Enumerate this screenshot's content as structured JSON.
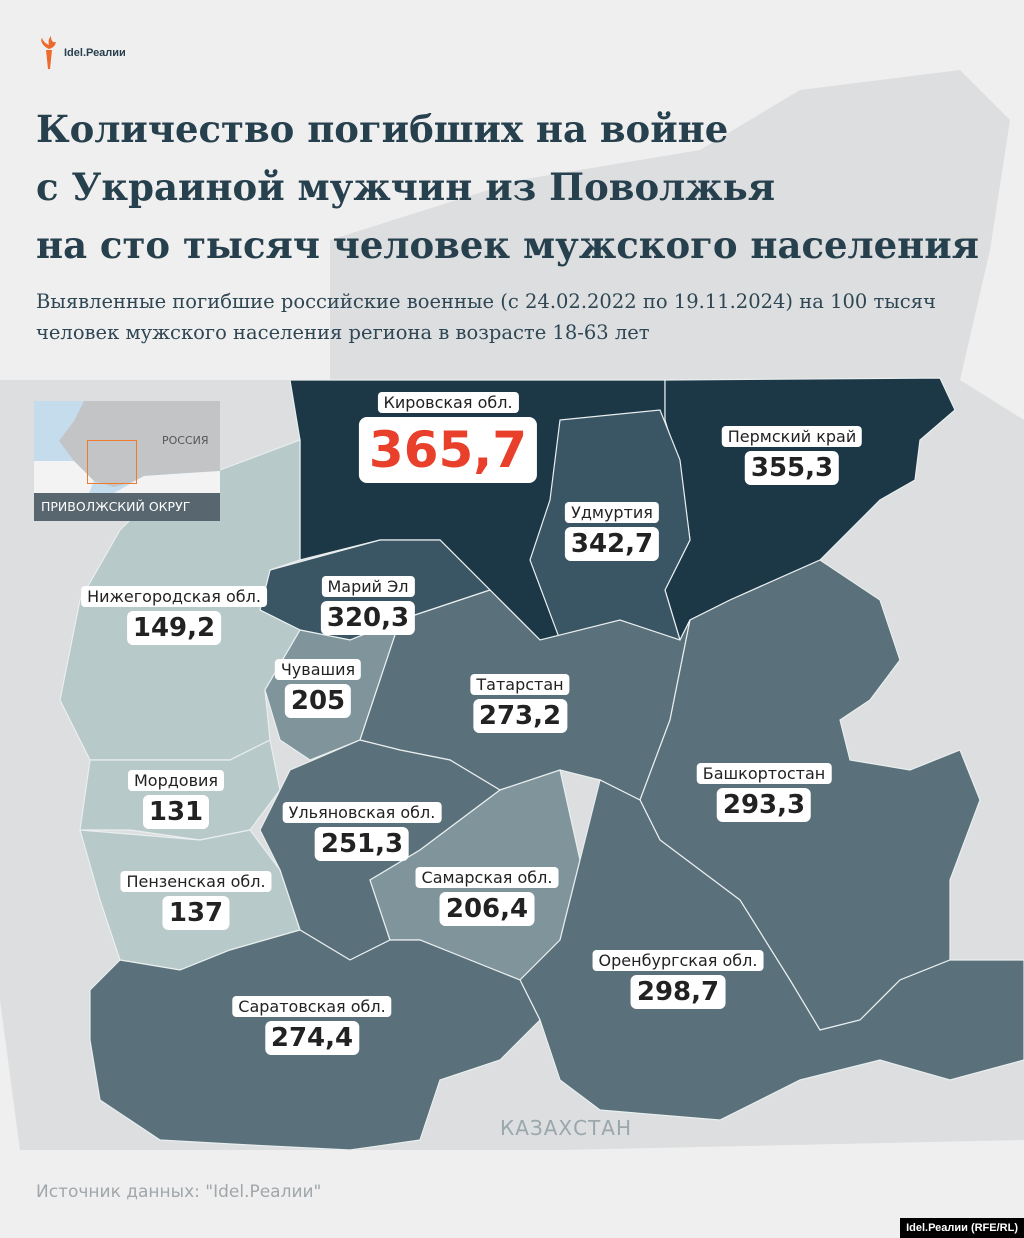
{
  "logo": {
    "text": "Idel.Реалии",
    "accent": "#ee6a2b"
  },
  "title_lines": [
    "Количество погибших на войне",
    "с Украиной мужчин из Поволжья",
    "на сто тысяч человек мужского населения"
  ],
  "subtitle": "Выявленные погибшие российские военные (с 24.02.2022 по 19.11.2024) на 100 тысяч человек мужского населения региона в возрасте 18-63 лет",
  "inset": {
    "country": "РОССИЯ",
    "caption": "ПРИВОЛЖСКИЙ ОКРУГ"
  },
  "neighbor_label": "КАЗАХСТАН",
  "colors": {
    "highest": "#1c3746",
    "high": "#3a5563",
    "mid": "#5a707a",
    "low": "#7f959b",
    "lowest": "#b8c9c9",
    "max_value": "#e8402a"
  },
  "regions": [
    {
      "name": "Кировская обл.",
      "value": "365,7"
    },
    {
      "name": "Пермский край",
      "value": "355,3"
    },
    {
      "name": "Удмуртия",
      "value": "342,7"
    },
    {
      "name": "Марий Эл",
      "value": "320,3"
    },
    {
      "name": "Нижегородская обл.",
      "value": "149,2"
    },
    {
      "name": "Чувашия",
      "value": "205"
    },
    {
      "name": "Татарстан",
      "value": "273,2"
    },
    {
      "name": "Башкортостан",
      "value": "293,3"
    },
    {
      "name": "Мордовия",
      "value": "131"
    },
    {
      "name": "Ульяновская обл.",
      "value": "251,3"
    },
    {
      "name": "Самарская обл.",
      "value": "206,4"
    },
    {
      "name": "Пензенская обл.",
      "value": "137"
    },
    {
      "name": "Оренбургская обл.",
      "value": "298,7"
    },
    {
      "name": "Саратовская обл.",
      "value": "274,4"
    }
  ],
  "source": "Источник данных: \"Idel.Реалии\"",
  "credit": "Idel.Реалии (RFE/RL)"
}
